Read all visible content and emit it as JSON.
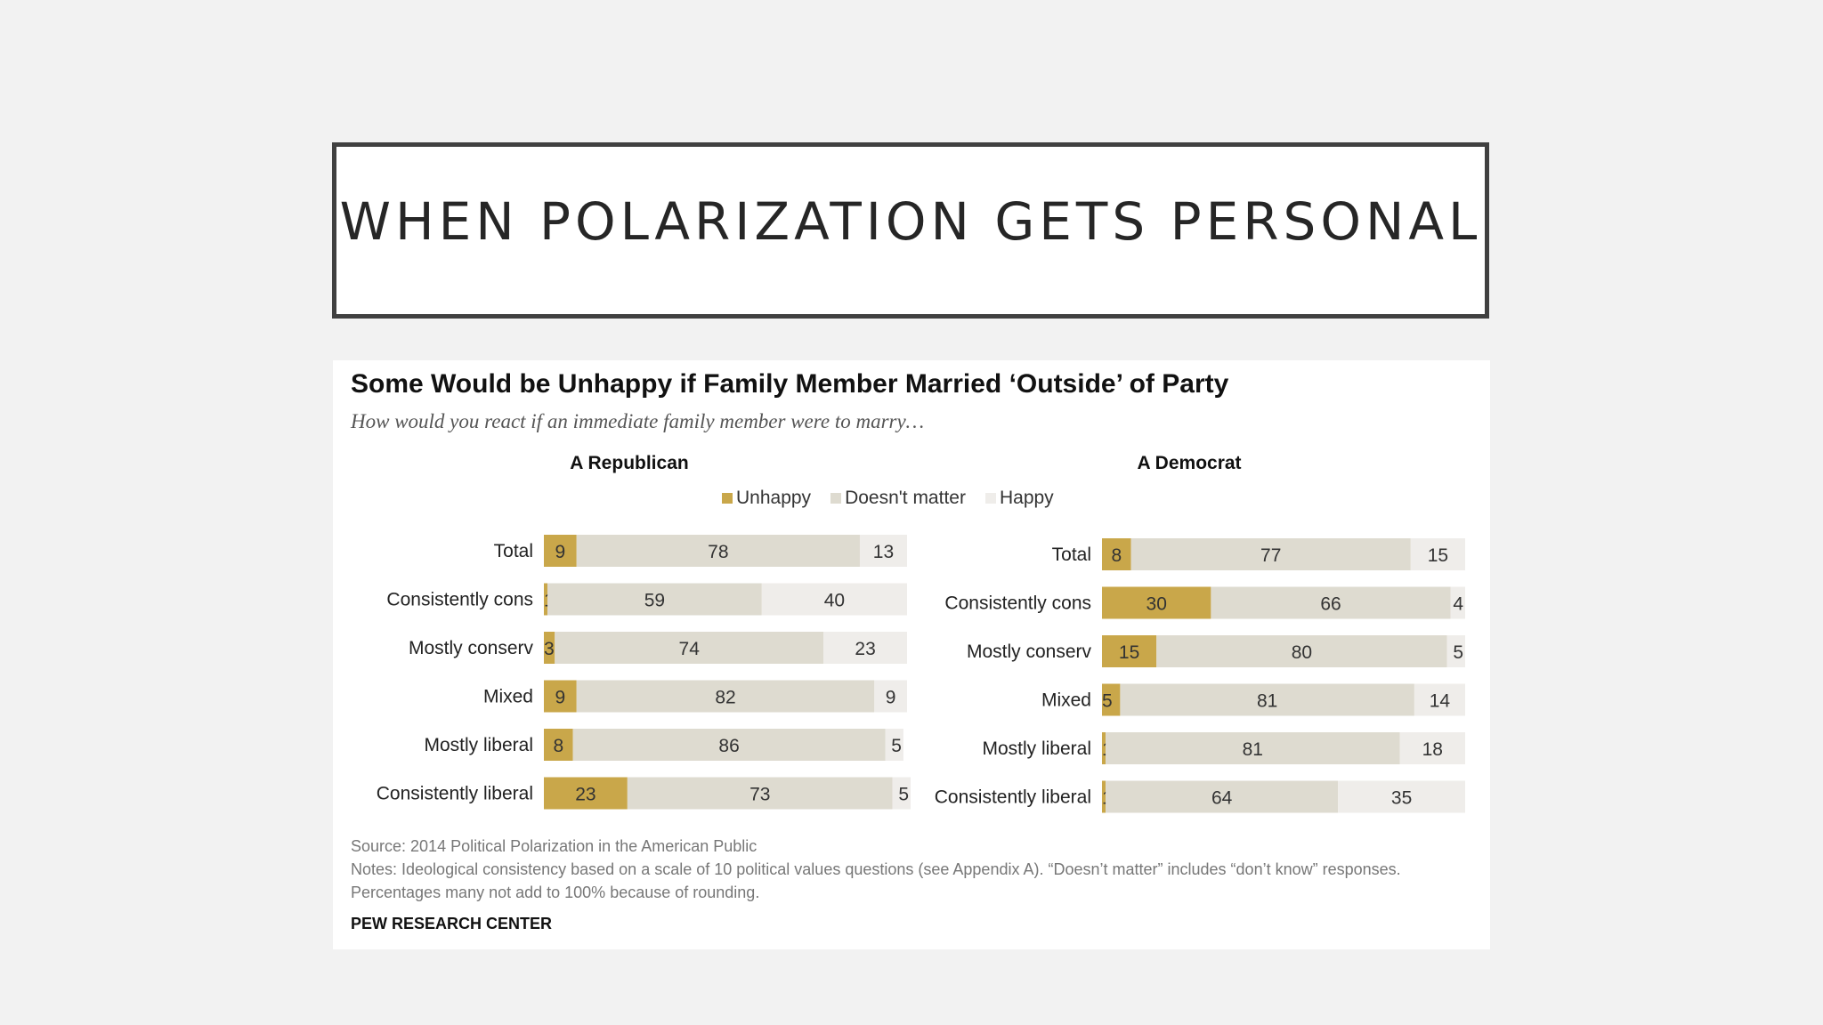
{
  "slide": {
    "title": "WHEN POLARIZATION GETS PERSONAL"
  },
  "figure": {
    "title": "Some Would be Unhappy if Family Member Married ‘Outside’ of Party",
    "subtitle": "How would you react if an immediate family member were to marry…",
    "source": "Source: 2014 Political Polarization in the American Public",
    "notes": "Notes: Ideological consistency based on a scale of 10 political values questions (see Appendix A). “Doesn’t matter” includes “don’t know” responses. Percentages many not add to 100% because of rounding.",
    "brand": "PEW RESEARCH CENTER"
  },
  "colors": {
    "unhappy": "#c9a74a",
    "doesnt_matter": "#dedbd0",
    "happy": "#efedea"
  },
  "chart_data": [
    {
      "type": "bar",
      "stacked": true,
      "orientation": "horizontal",
      "title": "A Republican",
      "legend": [
        "Unhappy",
        "Doesn't matter",
        "Happy"
      ],
      "categories": [
        "Total",
        "Consistently cons",
        "Mostly conserv",
        "Mixed",
        "Mostly liberal",
        "Consistently liberal"
      ],
      "series": [
        {
          "name": "Unhappy",
          "values": [
            9,
            1,
            3,
            9,
            8,
            23
          ]
        },
        {
          "name": "Doesn't matter",
          "values": [
            78,
            59,
            74,
            82,
            86,
            73
          ]
        },
        {
          "name": "Happy",
          "values": [
            13,
            40,
            23,
            9,
            5,
            5
          ]
        }
      ]
    },
    {
      "type": "bar",
      "stacked": true,
      "orientation": "horizontal",
      "title": "A Democrat",
      "legend": [
        "Unhappy",
        "Doesn't matter",
        "Happy"
      ],
      "categories": [
        "Total",
        "Consistently cons",
        "Mostly conserv",
        "Mixed",
        "Mostly liberal",
        "Consistently liberal"
      ],
      "series": [
        {
          "name": "Unhappy",
          "values": [
            8,
            30,
            15,
            5,
            1,
            1
          ]
        },
        {
          "name": "Doesn't matter",
          "values": [
            77,
            66,
            80,
            81,
            81,
            64
          ]
        },
        {
          "name": "Happy",
          "values": [
            15,
            4,
            5,
            14,
            18,
            35
          ]
        }
      ]
    }
  ]
}
